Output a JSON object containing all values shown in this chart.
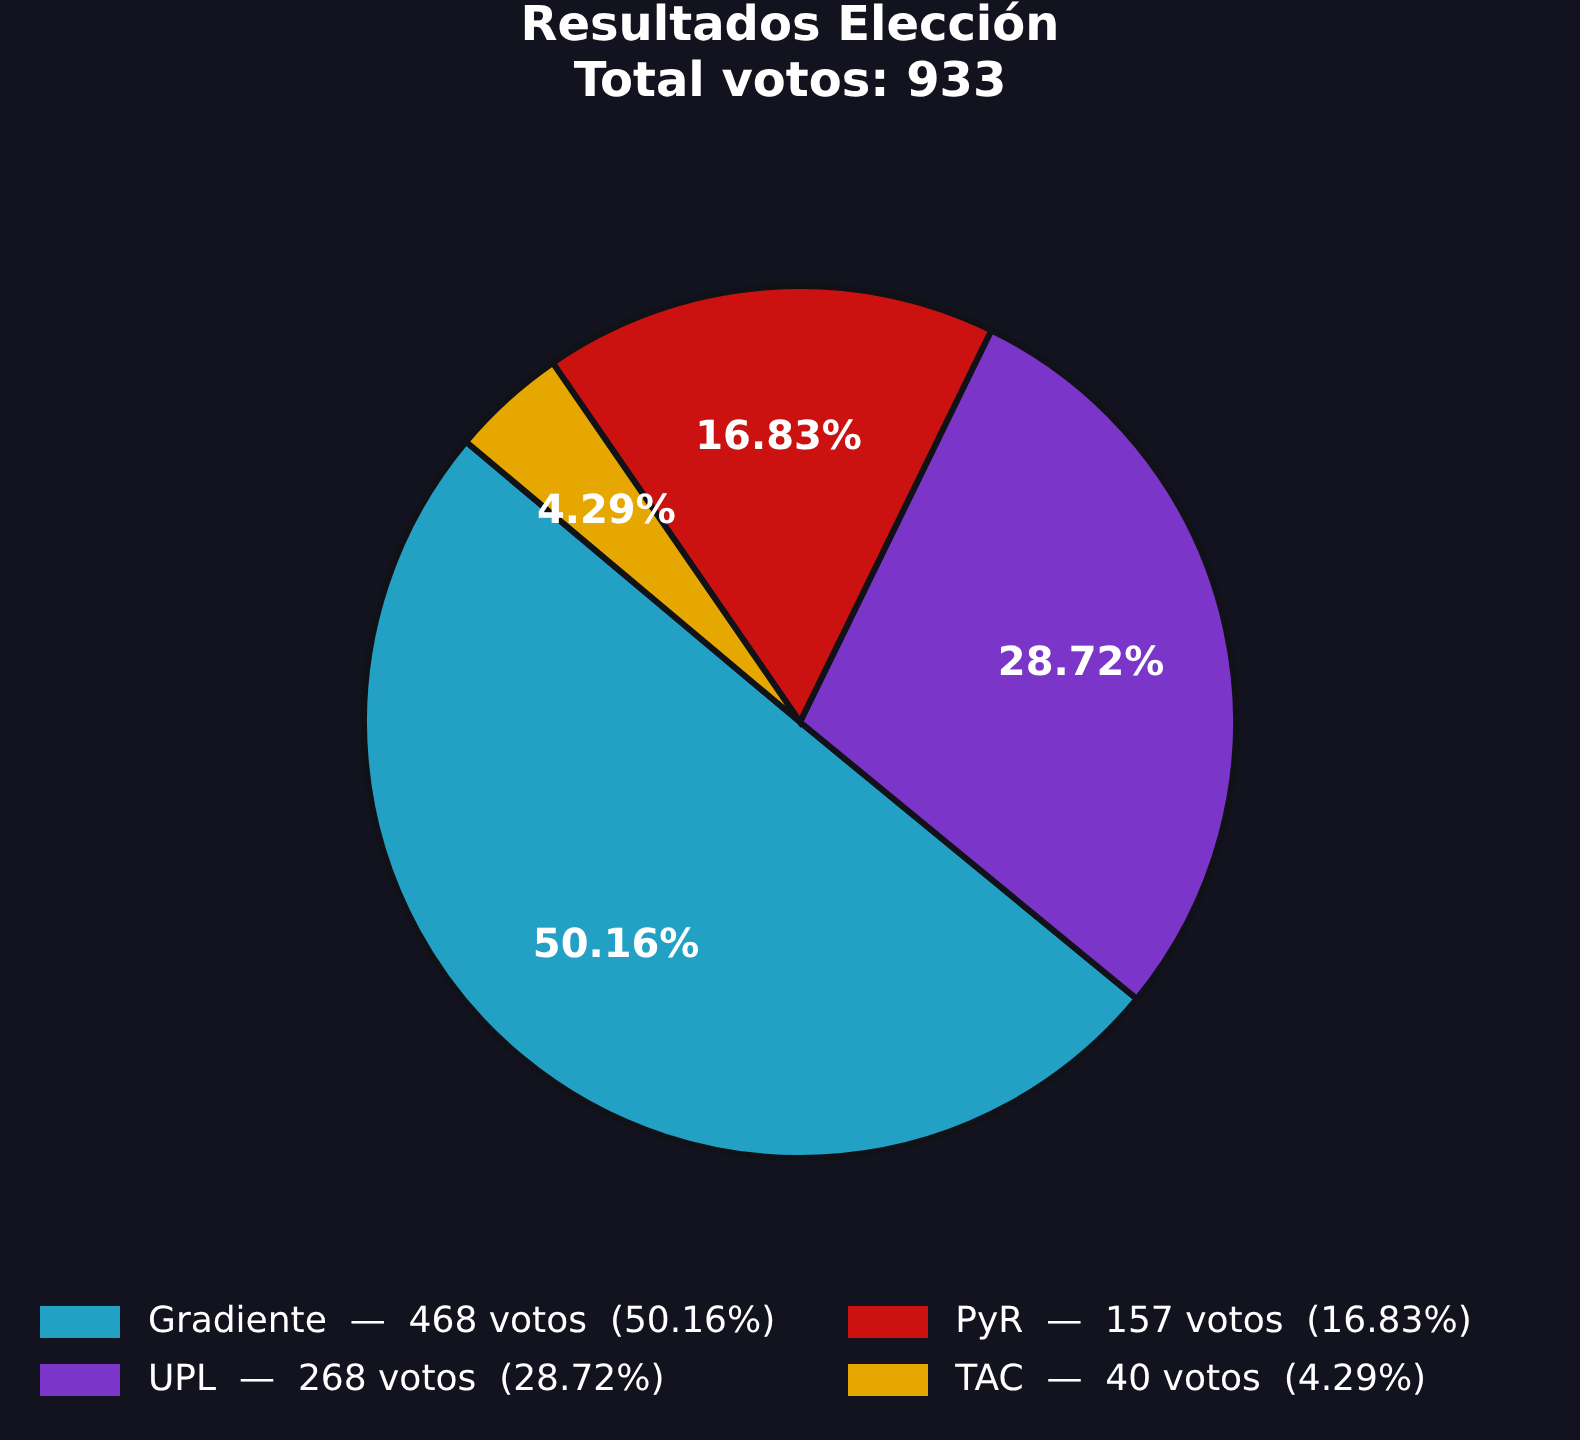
{
  "chart_data": {
    "type": "pie",
    "title": "Resultados Elección",
    "subtitle": "Total votos: 933",
    "categories": [
      "Gradiente  —  468 votos  (50.16%)",
      "UPL  —  268 votos  (28.72%)",
      "PyR  —  157 votos  (16.83%)",
      "TAC  —  40 votos  (4.29%)"
    ],
    "values": [
      50.16,
      28.72,
      16.83,
      4.29
    ],
    "value_labels": [
      "50.16%",
      "28.72%",
      "16.83%",
      "4.29%"
    ],
    "colors": [
      "#22a1c4",
      "#7b35c8",
      "#cc1111",
      "#e6a800"
    ],
    "legend": "bottom"
  }
}
